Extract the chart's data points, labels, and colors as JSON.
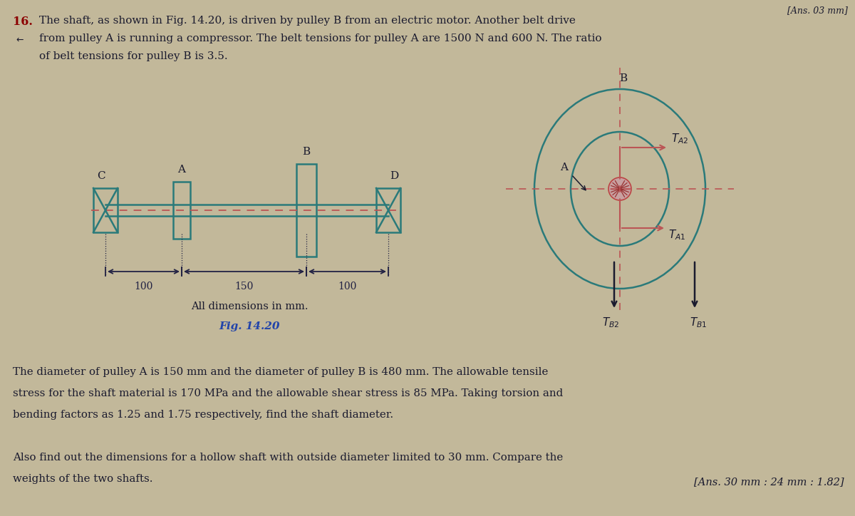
{
  "bg_color": "#c2b89a",
  "text_color": "#1a1a2e",
  "shaft_color": "#2a7a7a",
  "dash_color": "#bb5555",
  "dim_color": "#222244",
  "fig_caption_color": "#2244aa",
  "ans_color": "#cc3333",
  "page_title": "[Ans. 03 mm]",
  "problem_number": "16.",
  "problem_text_line1": "The shaft, as shown in Fig. 14.20, is driven by pulley B from an electric motor. Another belt drive",
  "problem_text_line2": "from pulley A is running a compressor. The belt tensions for pulley A are 1500 N and 600 N. The ratio",
  "problem_text_line3": "of belt tensions for pulley B is 3.5.",
  "fig_caption": "Fig. 14.20",
  "dims_text": "All dimensions in mm.",
  "body_text_line1": "The diameter of pulley A is 150 mm and the diameter of pulley B is 480 mm. The allowable tensile",
  "body_text_line2": "stress for the shaft material is 170 MPa and the allowable shear stress is 85 MPa. Taking torsion and",
  "body_text_line3": "bending factors as 1.25 and 1.75 respectively, find the shaft diameter.",
  "body_text_line4": "Also find out the dimensions for a hollow shaft with outside diameter limited to 30 mm. Compare the",
  "body_text_line5": "weights of the two shafts.",
  "ans_text": "[Ans. 30 mm : 24 mm : 1.82]",
  "dim_100_left": "100",
  "dim_150": "150",
  "dim_100_right": "100",
  "label_A": "A",
  "label_B": "B",
  "label_C": "C",
  "label_D": "D"
}
